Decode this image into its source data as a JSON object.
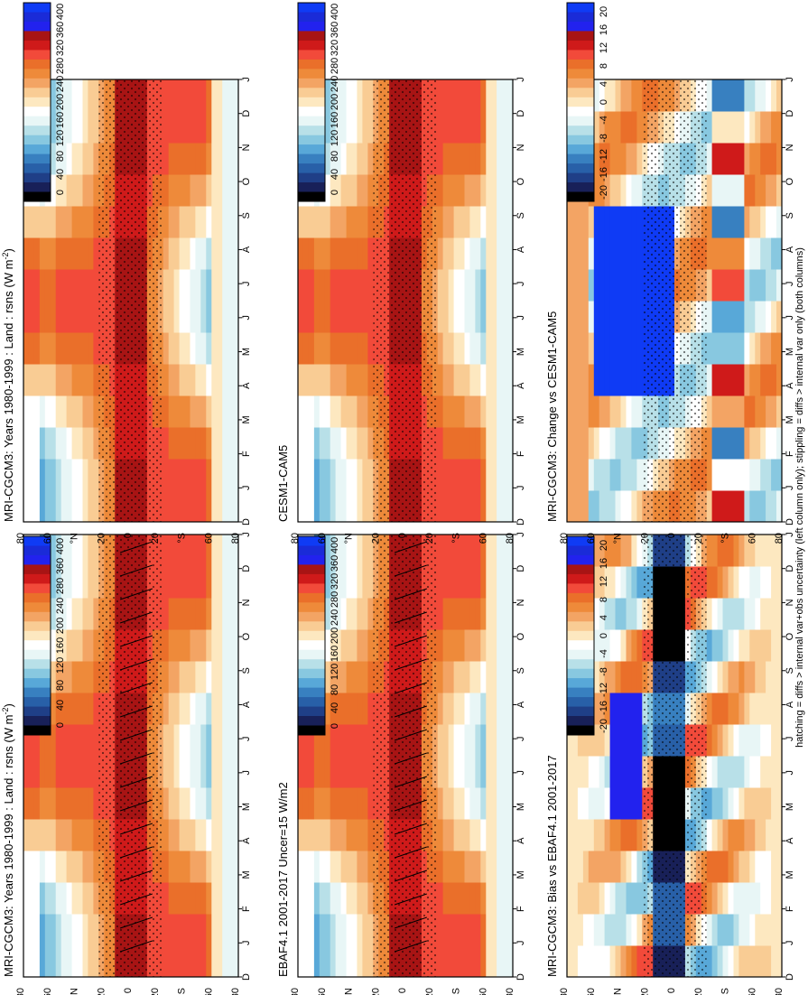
{
  "figure": {
    "footnote": "hatching = diffs > internal var+obs uncertainty (left column only); stippling = diffs > internal var only (both columns)"
  },
  "colors": {
    "abs_scale": [
      "#000000",
      "#182058",
      "#1f3f87",
      "#2860a8",
      "#3880c0",
      "#58a8d8",
      "#88c8e0",
      "#b8e0e8",
      "#e8f6f6",
      "#ffffff",
      "#fde8c0",
      "#f9cc94",
      "#f3a464",
      "#ee8a3a",
      "#ea6f2a",
      "#f24a3a",
      "#cf1a1a",
      "#a81414",
      "#2222ee",
      "#1a2bd8",
      "#0f3bf5"
    ],
    "diff_scale": [
      "#000000",
      "#182058",
      "#1f3f87",
      "#2860a8",
      "#3880c0",
      "#58a8d8",
      "#88c8e0",
      "#b8e0e8",
      "#e8f6f6",
      "#ffffff",
      "#fde8c0",
      "#f9cc94",
      "#f3a464",
      "#ee8a3a",
      "#ea6f2a",
      "#f24a3a",
      "#cf1a1a",
      "#a81414",
      "#2222ee",
      "#1a2bd8",
      "#0f3bf5"
    ],
    "hatch": "#000000",
    "stipple": "#000000"
  },
  "chart_data": [
    {
      "type": "heatmap",
      "panel": "top-left",
      "title": "MRI-CGCM3: Years 1980-1999 : Land : rsns (W m",
      "title_sup": "-2",
      "title_end": ")",
      "x_categories": [
        "D",
        "J",
        "F",
        "M",
        "A",
        "M",
        "J",
        "J",
        "A",
        "S",
        "O",
        "N",
        "D",
        "J"
      ],
      "y_ticks": [
        "80",
        "60",
        "°N",
        "20",
        "0",
        "20",
        "°S",
        "60",
        "80"
      ],
      "colorbar_ticks": [
        "400",
        "360",
        "280",
        "240",
        "200",
        "160",
        "120",
        "80",
        "40",
        "0"
      ],
      "colorbar_range": [
        0,
        420
      ],
      "hatching": true,
      "stippling": true
    },
    {
      "type": "heatmap",
      "panel": "top-right",
      "title": "MRI-CGCM3: Years 1980-1999 : Land : rsns (W m",
      "title_sup": "-2",
      "title_end": ")",
      "x_categories": [
        "D",
        "J",
        "F",
        "M",
        "A",
        "M",
        "J",
        "J",
        "A",
        "S",
        "O",
        "N",
        "D",
        "J"
      ],
      "y_ticks": [
        "80",
        "60",
        "°N",
        "20",
        "0",
        "20",
        "°S",
        "60",
        "80"
      ],
      "colorbar_ticks": [
        "400",
        "360",
        "320",
        "280",
        "240",
        "200",
        "160",
        "120",
        "80",
        "40",
        "0"
      ],
      "colorbar_range": [
        0,
        420
      ],
      "hatching": false,
      "stippling": true
    },
    {
      "type": "heatmap",
      "panel": "middle-left",
      "title": "EBAF4.1 2001-2017 Uncer=15 W/m2",
      "x_categories": [
        "D",
        "J",
        "F",
        "M",
        "A",
        "M",
        "J",
        "J",
        "A",
        "S",
        "O",
        "N",
        "D",
        "J"
      ],
      "y_ticks": [
        "80",
        "60",
        "°N",
        "20",
        "0",
        "20",
        "°S",
        "60",
        "80"
      ],
      "colorbar_ticks": [
        "400",
        "360",
        "320",
        "280",
        "240",
        "200",
        "160",
        "120",
        "80",
        "40",
        "0"
      ],
      "colorbar_range": [
        0,
        420
      ],
      "hatching": true,
      "stippling": true
    },
    {
      "type": "heatmap",
      "panel": "middle-right",
      "title": "CESM1-CAM5",
      "x_categories": [
        "D",
        "J",
        "F",
        "M",
        "A",
        "M",
        "J",
        "J",
        "A",
        "S",
        "O",
        "N",
        "D",
        "J"
      ],
      "y_ticks": [
        "80",
        "60",
        "°N",
        "20",
        "0",
        "20",
        "°S",
        "60",
        "80"
      ],
      "colorbar_ticks": [
        "400",
        "360",
        "320",
        "280",
        "240",
        "200",
        "160",
        "120",
        "80",
        "40",
        "0"
      ],
      "colorbar_range": [
        0,
        420
      ],
      "hatching": false,
      "stippling": true
    },
    {
      "type": "heatmap",
      "panel": "bottom-left",
      "title": "MRI-CGCM3: Bias vs EBAF4.1 2001-2017",
      "x_categories": [
        "D",
        "J",
        "F",
        "M",
        "A",
        "M",
        "J",
        "J",
        "A",
        "S",
        "O",
        "N",
        "D",
        "J"
      ],
      "y_ticks": [
        "80",
        "60",
        "°N",
        "20",
        "0",
        "20",
        "°S",
        "60",
        "80"
      ],
      "colorbar_ticks": [
        "20",
        "16",
        "12",
        "8",
        "4",
        "0",
        "-4",
        "-8",
        "-12",
        "-16",
        "-20"
      ],
      "colorbar_range": [
        -22,
        22
      ],
      "hatching": false,
      "stippling": true
    },
    {
      "type": "heatmap",
      "panel": "bottom-right",
      "title": "MRI-CGCM3: Change vs CESM1-CAM5",
      "x_categories": [
        "D",
        "J",
        "F",
        "M",
        "A",
        "M",
        "J",
        "J",
        "A",
        "S",
        "O",
        "N",
        "D",
        "J"
      ],
      "y_ticks": [
        "80",
        "60",
        "°N",
        "20",
        "0",
        "20",
        "°S",
        "60",
        "80"
      ],
      "colorbar_ticks": [
        "20",
        "16",
        "12",
        "8",
        "4",
        "0",
        "-4",
        "-8",
        "-12",
        "-16",
        "-20"
      ],
      "colorbar_range": [
        -22,
        22
      ],
      "hatching": false,
      "stippling": true
    }
  ]
}
